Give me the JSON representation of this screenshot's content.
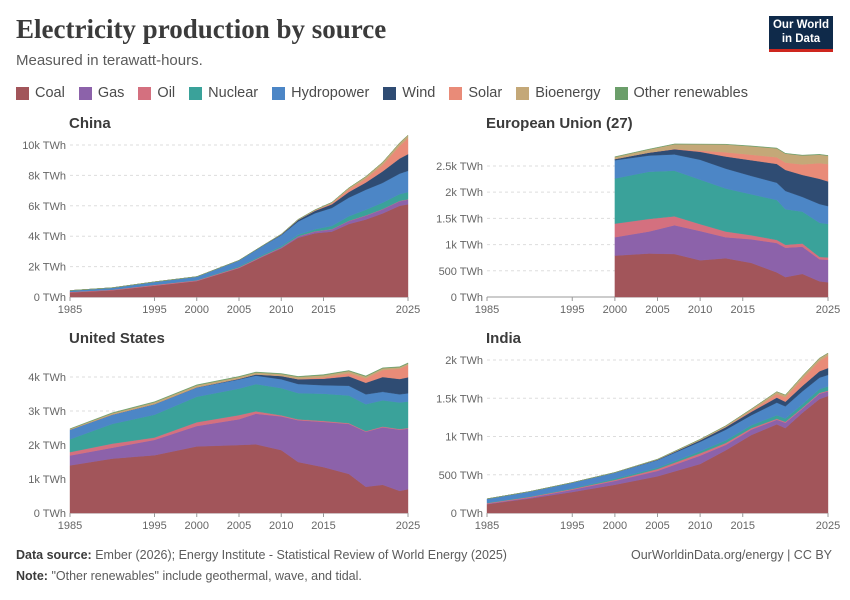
{
  "header": {
    "title": "Electricity production by source",
    "subtitle": "Measured in terawatt-hours.",
    "logo_line1": "Our World",
    "logo_line2": "in Data"
  },
  "legend": [
    {
      "name": "Coal",
      "color": "#a2555a"
    },
    {
      "name": "Gas",
      "color": "#8c62aa"
    },
    {
      "name": "Oil",
      "color": "#d4707f"
    },
    {
      "name": "Nuclear",
      "color": "#3aa29a"
    },
    {
      "name": "Hydropower",
      "color": "#4c86c6"
    },
    {
      "name": "Wind",
      "color": "#2f4c73"
    },
    {
      "name": "Solar",
      "color": "#e98b78"
    },
    {
      "name": "Bioenergy",
      "color": "#c4a878"
    },
    {
      "name": "Other renewables",
      "color": "#6b9e6a"
    }
  ],
  "chart_data": [
    {
      "type": "area",
      "title": "China",
      "x": [
        1985,
        1990,
        1995,
        2000,
        2005,
        2008,
        2010,
        2012,
        2014,
        2016,
        2018,
        2020,
        2022,
        2024,
        2025
      ],
      "xticks": [
        "1985",
        "1995",
        "2000",
        "2005",
        "2010",
        "2015",
        "2025"
      ],
      "yticks": [
        "0 TWh",
        "2k TWh",
        "4k TWh",
        "6k TWh",
        "8k TWh",
        "10k TWh"
      ],
      "ylim": [
        0,
        10000
      ],
      "series": [
        {
          "name": "Coal",
          "values": [
            300,
            450,
            750,
            1050,
            1900,
            2700,
            3200,
            3900,
            4200,
            4300,
            4800,
            5100,
            5500,
            6000,
            6100
          ]
        },
        {
          "name": "Gas",
          "values": [
            0,
            0,
            0,
            10,
            20,
            30,
            50,
            80,
            110,
            150,
            200,
            250,
            270,
            300,
            310
          ]
        },
        {
          "name": "Oil",
          "values": [
            40,
            40,
            50,
            40,
            40,
            30,
            20,
            20,
            20,
            20,
            20,
            20,
            20,
            20,
            20
          ]
        },
        {
          "name": "Nuclear",
          "values": [
            0,
            0,
            10,
            20,
            50,
            70,
            80,
            100,
            130,
            210,
            290,
            370,
            420,
            450,
            470
          ]
        },
        {
          "name": "Hydropower",
          "values": [
            90,
            120,
            190,
            220,
            400,
            600,
            720,
            870,
            1050,
            1180,
            1230,
            1320,
            1300,
            1350,
            1400
          ]
        },
        {
          "name": "Wind",
          "values": [
            0,
            0,
            0,
            1,
            2,
            15,
            45,
            100,
            160,
            240,
            370,
            470,
            760,
            990,
            1100
          ]
        },
        {
          "name": "Solar",
          "values": [
            0,
            0,
            0,
            0,
            0,
            0,
            1,
            5,
            30,
            70,
            180,
            260,
            430,
            830,
            1050
          ]
        },
        {
          "name": "Bioenergy",
          "values": [
            0,
            0,
            0,
            2,
            5,
            10,
            20,
            30,
            40,
            60,
            90,
            130,
            170,
            190,
            200
          ]
        },
        {
          "name": "Other renewables",
          "values": [
            0,
            0,
            0,
            0,
            0,
            0,
            0,
            0,
            0,
            0,
            0,
            0,
            0,
            0,
            0
          ]
        }
      ]
    },
    {
      "type": "area",
      "title": "European Union (27)",
      "x": [
        2000,
        2004,
        2007,
        2010,
        2013,
        2016,
        2019,
        2020,
        2022,
        2024,
        2025
      ],
      "xticks": [
        "1985",
        "1995",
        "2000",
        "2005",
        "2010",
        "2015",
        "2025"
      ],
      "yticks": [
        "0 TWh",
        "500 TWh",
        "1k TWh",
        "1.5k TWh",
        "2k TWh",
        "2.5k TWh"
      ],
      "ylim": [
        0,
        2900
      ],
      "series": [
        {
          "name": "Coal",
          "values": [
            790,
            830,
            820,
            700,
            740,
            650,
            470,
            380,
            440,
            300,
            280
          ]
        },
        {
          "name": "Gas",
          "values": [
            350,
            420,
            550,
            560,
            400,
            450,
            560,
            560,
            520,
            420,
            430
          ]
        },
        {
          "name": "Oil",
          "values": [
            260,
            240,
            170,
            130,
            110,
            80,
            60,
            55,
            60,
            45,
            45
          ]
        },
        {
          "name": "Nuclear",
          "values": [
            860,
            900,
            870,
            850,
            820,
            780,
            760,
            680,
            610,
            650,
            640
          ]
        },
        {
          "name": "Hydropower",
          "values": [
            350,
            310,
            310,
            380,
            380,
            350,
            330,
            350,
            280,
            360,
            340
          ]
        },
        {
          "name": "Wind",
          "values": [
            22,
            55,
            100,
            150,
            230,
            300,
            360,
            400,
            420,
            480,
            470
          ]
        },
        {
          "name": "Solar",
          "values": [
            0,
            1,
            5,
            23,
            80,
            105,
            125,
            140,
            200,
            300,
            330
          ]
        },
        {
          "name": "Bioenergy",
          "values": [
            40,
            60,
            90,
            120,
            150,
            160,
            170,
            170,
            170,
            160,
            160
          ]
        },
        {
          "name": "Other renewables",
          "values": [
            5,
            5,
            6,
            6,
            6,
            7,
            7,
            7,
            7,
            7,
            7
          ]
        }
      ]
    },
    {
      "type": "area",
      "title": "United States",
      "x": [
        1985,
        1990,
        1995,
        2000,
        2005,
        2007,
        2010,
        2012,
        2015,
        2018,
        2020,
        2022,
        2024,
        2025
      ],
      "xticks": [
        "1985",
        "1995",
        "2000",
        "2005",
        "2010",
        "2015",
        "2025"
      ],
      "yticks": [
        "0 TWh",
        "1k TWh",
        "2k TWh",
        "3k TWh",
        "4k TWh"
      ],
      "ylim": [
        0,
        4500
      ],
      "series": [
        {
          "name": "Coal",
          "values": [
            1400,
            1600,
            1700,
            1960,
            2000,
            2020,
            1850,
            1500,
            1350,
            1150,
            770,
            830,
            650,
            700
          ]
        },
        {
          "name": "Gas",
          "values": [
            290,
            320,
            450,
            600,
            760,
            900,
            990,
            1230,
            1330,
            1470,
            1620,
            1690,
            1800,
            1780
          ]
        },
        {
          "name": "Oil",
          "values": [
            100,
            120,
            70,
            110,
            120,
            70,
            35,
            25,
            30,
            25,
            20,
            25,
            20,
            20
          ]
        },
        {
          "name": "Nuclear",
          "values": [
            380,
            580,
            670,
            750,
            780,
            800,
            800,
            770,
            800,
            810,
            790,
            770,
            780,
            780
          ]
        },
        {
          "name": "Hydropower",
          "values": [
            280,
            270,
            310,
            270,
            270,
            250,
            260,
            270,
            250,
            290,
            290,
            250,
            240,
            240
          ]
        },
        {
          "name": "Wind",
          "values": [
            0,
            3,
            3,
            6,
            18,
            35,
            95,
            140,
            190,
            275,
            340,
            435,
            450,
            470
          ]
        },
        {
          "name": "Solar",
          "values": [
            0,
            1,
            1,
            1,
            1,
            1,
            3,
            10,
            40,
            95,
            130,
            205,
            300,
            360
          ]
        },
        {
          "name": "Bioenergy",
          "values": [
            20,
            40,
            55,
            60,
            55,
            55,
            56,
            58,
            64,
            60,
            55,
            50,
            48,
            48
          ]
        },
        {
          "name": "Other renewables",
          "values": [
            10,
            15,
            14,
            14,
            15,
            15,
            15,
            16,
            17,
            16,
            16,
            16,
            16,
            16
          ]
        }
      ]
    },
    {
      "type": "area",
      "title": "India",
      "x": [
        1985,
        1990,
        1995,
        2000,
        2005,
        2010,
        2013,
        2016,
        2019,
        2020,
        2022,
        2024,
        2025
      ],
      "xticks": [
        "1985",
        "1995",
        "2000",
        "2005",
        "2010",
        "2015",
        "2025"
      ],
      "yticks": [
        "0 TWh",
        "500 TWh",
        "1k TWh",
        "1.5k TWh",
        "2k TWh"
      ],
      "ylim": [
        0,
        2000
      ],
      "series": [
        {
          "name": "Coal",
          "values": [
            115,
            190,
            275,
            370,
            480,
            640,
            820,
            1020,
            1160,
            1110,
            1310,
            1490,
            1530
          ]
        },
        {
          "name": "Gas",
          "values": [
            5,
            10,
            30,
            50,
            70,
            110,
            70,
            70,
            60,
            70,
            55,
            70,
            60
          ]
        },
        {
          "name": "Oil",
          "values": [
            10,
            10,
            10,
            13,
            25,
            30,
            25,
            20,
            13,
            12,
            10,
            10,
            10
          ]
        },
        {
          "name": "Nuclear",
          "values": [
            5,
            6,
            8,
            17,
            17,
            26,
            34,
            38,
            45,
            43,
            46,
            50,
            55
          ]
        },
        {
          "name": "Hydropower",
          "values": [
            50,
            65,
            75,
            78,
            100,
            125,
            140,
            130,
            165,
            160,
            170,
            150,
            150
          ]
        },
        {
          "name": "Wind",
          "values": [
            0,
            0,
            1,
            2,
            6,
            20,
            33,
            45,
            65,
            60,
            70,
            83,
            90
          ]
        },
        {
          "name": "Solar",
          "values": [
            0,
            0,
            0,
            0,
            0,
            0,
            3,
            14,
            48,
            58,
            95,
            135,
            160
          ]
        },
        {
          "name": "Bioenergy",
          "values": [
            0,
            0,
            0,
            1,
            5,
            12,
            15,
            22,
            30,
            30,
            35,
            35,
            35
          ]
        },
        {
          "name": "Other renewables",
          "values": [
            0,
            0,
            0,
            0,
            0,
            0,
            0,
            0,
            0,
            0,
            0,
            0,
            0
          ]
        }
      ]
    }
  ],
  "footer": {
    "source_label": "Data source:",
    "source_text": "Ember (2026); Energy Institute - Statistical Review of World Energy (2025)",
    "note_label": "Note:",
    "note_text": "\"Other renewables\" include geothermal, wave, and tidal.",
    "credit": "OurWorldinData.org/energy | CC BY"
  }
}
